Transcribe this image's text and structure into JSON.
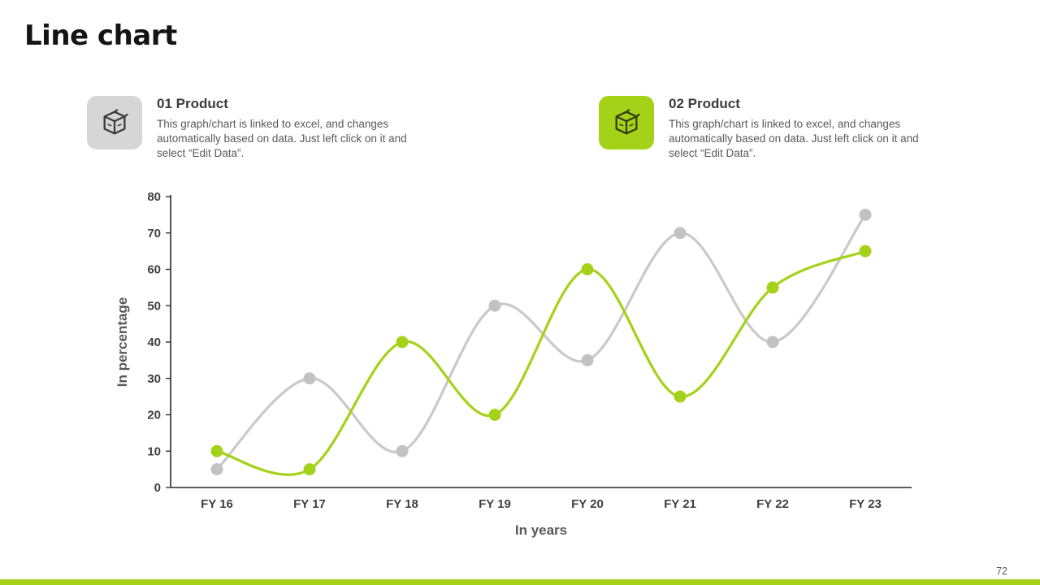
{
  "title": "Line chart",
  "page_number": "72",
  "products": [
    {
      "heading": "01 Product",
      "body": "This graph/chart is linked to excel, and changes automatically based on data. Just left click on it and select “Edit Data”.",
      "icon": "product-box-icon",
      "icon_bg": "#d6d6d6"
    },
    {
      "heading": "02 Product",
      "body": "This graph/chart is linked to excel, and changes automatically based on data. Just left click on it and select “Edit Data”.",
      "icon": "product-box-icon",
      "icon_bg": "#a4d219"
    }
  ],
  "chart_data": {
    "type": "line",
    "smooth": true,
    "x": [
      "FY 16",
      "FY 17",
      "FY 18",
      "FY 19",
      "FY 20",
      "FY 21",
      "FY 22",
      "FY 23"
    ],
    "series": [
      {
        "name": "Product 01",
        "color": "#c9c9c9",
        "marker_color": "#c2c2c2",
        "values": [
          5,
          30,
          10,
          50,
          35,
          70,
          40,
          75
        ]
      },
      {
        "name": "Product 02",
        "color": "#a4d219",
        "marker_color": "#a4d219",
        "values": [
          10,
          5,
          40,
          20,
          60,
          25,
          55,
          65
        ]
      }
    ],
    "xlabel": "In years",
    "ylabel": "In percentage",
    "ylim": [
      0,
      80
    ],
    "ytick_step": 10,
    "grid": false,
    "legend": "none",
    "axis_color": "#262626",
    "tick_label_color": "#404040",
    "axis_title_color": "#595959"
  },
  "footer": {
    "bar_color": "#a4d219"
  }
}
